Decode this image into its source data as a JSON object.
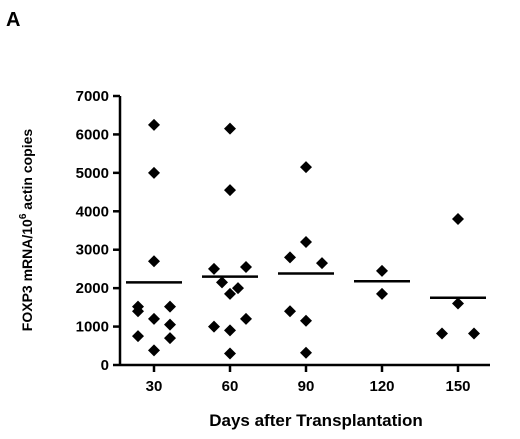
{
  "panel_label": "A",
  "chart_data": {
    "type": "scatter",
    "title": "",
    "xlabel": "Days after Transplantation",
    "ylabel": {
      "prefix": "FOXP3 mRNA/10",
      "superscript": "6",
      "suffix": " actin copies"
    },
    "categories": [
      "30",
      "60",
      "90",
      "120",
      "150"
    ],
    "ylim": [
      0,
      7000
    ],
    "yticks": [
      0,
      1000,
      2000,
      3000,
      4000,
      5000,
      6000,
      7000
    ],
    "grid": false,
    "legend": "none",
    "marker": "diamond",
    "median_line": true,
    "groups": [
      {
        "category": "30",
        "median": 2150,
        "points": [
          {
            "offset": 0,
            "y": 6250
          },
          {
            "offset": 0,
            "y": 5000
          },
          {
            "offset": 0,
            "y": 2700
          },
          {
            "offset": -1,
            "y": 1520
          },
          {
            "offset": 1,
            "y": 1520
          },
          {
            "offset": -1,
            "y": 1400
          },
          {
            "offset": 0,
            "y": 1200
          },
          {
            "offset": 1,
            "y": 1050
          },
          {
            "offset": -1,
            "y": 750
          },
          {
            "offset": 1,
            "y": 700
          },
          {
            "offset": 0,
            "y": 380
          }
        ]
      },
      {
        "category": "60",
        "median": 2300,
        "points": [
          {
            "offset": 0,
            "y": 6150
          },
          {
            "offset": 0,
            "y": 4550
          },
          {
            "offset": -1,
            "y": 2500
          },
          {
            "offset": 1,
            "y": 2550
          },
          {
            "offset": -0.5,
            "y": 2150
          },
          {
            "offset": 0.5,
            "y": 2000
          },
          {
            "offset": 0,
            "y": 1850
          },
          {
            "offset": 1,
            "y": 1200
          },
          {
            "offset": -1,
            "y": 1000
          },
          {
            "offset": 0,
            "y": 900
          },
          {
            "offset": 0,
            "y": 300
          }
        ]
      },
      {
        "category": "90",
        "median": 2380,
        "points": [
          {
            "offset": 0,
            "y": 5150
          },
          {
            "offset": 0,
            "y": 3200
          },
          {
            "offset": -1,
            "y": 2800
          },
          {
            "offset": 1,
            "y": 2650
          },
          {
            "offset": -1,
            "y": 1400
          },
          {
            "offset": 0,
            "y": 1150
          },
          {
            "offset": 0,
            "y": 320
          }
        ]
      },
      {
        "category": "120",
        "median": 2180,
        "points": [
          {
            "offset": 0,
            "y": 2450
          },
          {
            "offset": 0,
            "y": 1850
          }
        ]
      },
      {
        "category": "150",
        "median": 1750,
        "points": [
          {
            "offset": 0,
            "y": 3800
          },
          {
            "offset": 0,
            "y": 1600
          },
          {
            "offset": -1,
            "y": 820
          },
          {
            "offset": 1,
            "y": 820
          }
        ]
      }
    ]
  }
}
